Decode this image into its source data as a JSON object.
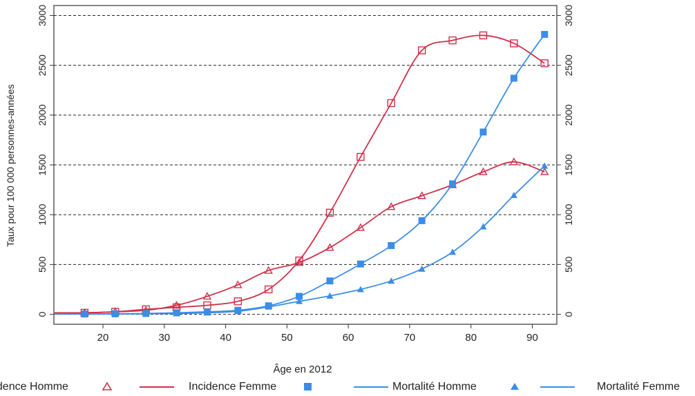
{
  "chart_data": {
    "type": "line",
    "title": "",
    "xlabel": "Âge en 2012",
    "ylabel": "Taux pour 100 000 personnes-années",
    "xlim": [
      12,
      94
    ],
    "ylim": [
      -100,
      3100
    ],
    "x_ticks": [
      20,
      30,
      40,
      50,
      60,
      70,
      80,
      90
    ],
    "y_ticks": [
      0,
      500,
      1000,
      1500,
      2000,
      2500,
      3000
    ],
    "grid": "horizontal dashed",
    "legend_position": "bottom",
    "x": [
      17,
      22,
      27,
      32,
      37,
      42,
      47,
      52,
      57,
      62,
      67,
      72,
      77,
      82,
      87,
      92
    ],
    "series": [
      {
        "name": "Incidence Homme",
        "marker": "triangle-open",
        "color": "#d0304a",
        "values": [
          15,
          25,
          40,
          90,
          180,
          295,
          440,
          520,
          670,
          870,
          1080,
          1190,
          1300,
          1430,
          1530,
          1430
        ]
      },
      {
        "name": "Incidence Femme",
        "marker": "square-open",
        "color": "#d0304a",
        "values": [
          15,
          25,
          50,
          70,
          90,
          130,
          250,
          540,
          1020,
          1580,
          2120,
          2650,
          2750,
          2800,
          2720,
          2520
        ]
      },
      {
        "name": "Mortalité Homme",
        "marker": "square-filled",
        "color": "#3b8de6",
        "values": [
          3,
          5,
          8,
          15,
          25,
          40,
          85,
          180,
          335,
          505,
          690,
          940,
          1310,
          1830,
          2370,
          2810
        ]
      },
      {
        "name": "Mortalité Femme",
        "marker": "triangle-filled",
        "color": "#3b8de6",
        "values": [
          2,
          3,
          5,
          8,
          15,
          30,
          75,
          130,
          185,
          250,
          335,
          455,
          625,
          880,
          1195,
          1490
        ]
      }
    ]
  },
  "legend": {
    "items": [
      {
        "label": "Incidence Homme"
      },
      {
        "label": "Incidence Femme"
      },
      {
        "label": "Mortalité Homme"
      },
      {
        "label": "Mortalité Femme"
      }
    ]
  }
}
